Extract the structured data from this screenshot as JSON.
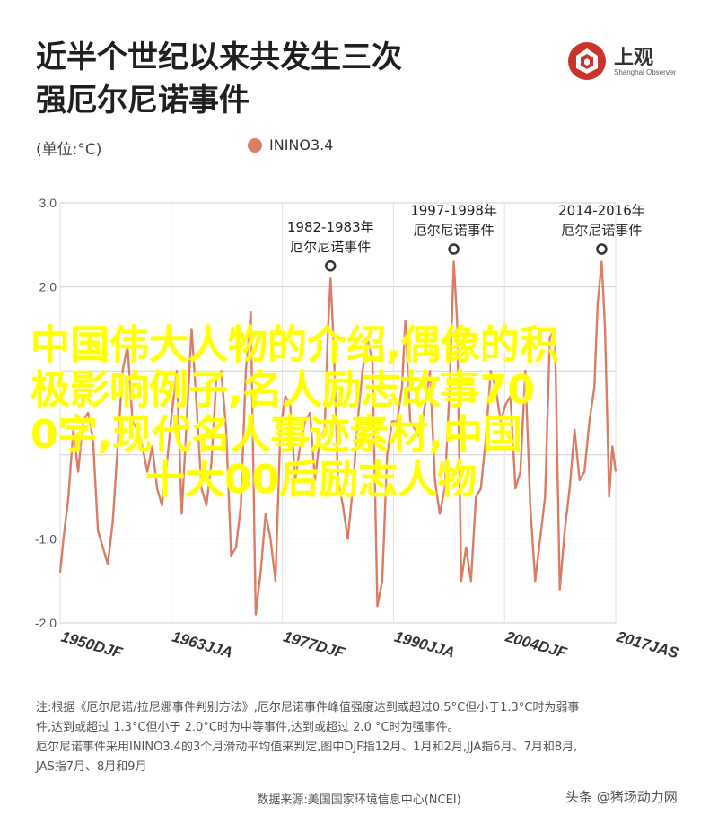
{
  "header": {
    "title_line1": "近半个世纪以来共发生三次",
    "title_line2": "强厄尔尼诺事件"
  },
  "brand": {
    "name": "上观",
    "subtitle": "Shanghai Observer",
    "logo_icon": "shanghai-observer-logo-icon"
  },
  "unit_label": "(单位:°C)",
  "legend": {
    "label": "ININO3.4"
  },
  "colors": {
    "series": "#d97d67",
    "overlay_text": "#ffff00"
  },
  "chart_data": {
    "type": "line",
    "title": "近半个世纪以来共发生三次强厄尔尼诺事件",
    "ylabel": "(单位:°C)",
    "ylim": [
      -2.0,
      3.0
    ],
    "yticks": [
      "3.0",
      "2.0",
      "-1.0",
      "-2.0"
    ],
    "xticks": [
      "1950DJF",
      "1963JJA",
      "1977DJF",
      "1990JJA",
      "2004DJF",
      "2017JAS"
    ],
    "x_range": [
      1950.0,
      2017.6
    ],
    "grid": true,
    "series": [
      {
        "name": "ININO3.4",
        "x": [
          1950.0,
          1950.4,
          1951.0,
          1951.6,
          1952.2,
          1952.8,
          1953.4,
          1954.0,
          1954.6,
          1955.2,
          1955.8,
          1956.4,
          1957.0,
          1957.6,
          1958.2,
          1958.8,
          1959.4,
          1960.0,
          1960.6,
          1961.2,
          1961.8,
          1962.4,
          1963.0,
          1963.6,
          1964.2,
          1964.8,
          1965.4,
          1966.0,
          1966.6,
          1967.2,
          1967.8,
          1968.4,
          1969.0,
          1969.6,
          1970.2,
          1970.8,
          1971.4,
          1972.0,
          1972.6,
          1973.2,
          1973.8,
          1974.4,
          1975.0,
          1975.6,
          1976.2,
          1976.8,
          1977.4,
          1978.0,
          1978.6,
          1979.2,
          1979.8,
          1980.4,
          1981.0,
          1981.6,
          1982.2,
          1982.6,
          1982.9,
          1983.3,
          1983.8,
          1984.4,
          1985.0,
          1985.6,
          1986.2,
          1986.8,
          1987.4,
          1988.0,
          1988.6,
          1989.2,
          1989.8,
          1990.4,
          1991.0,
          1991.6,
          1992.0,
          1992.6,
          1993.2,
          1993.8,
          1994.4,
          1995.0,
          1995.6,
          1996.2,
          1996.8,
          1997.4,
          1997.9,
          1998.3,
          1998.8,
          1999.4,
          2000.0,
          2000.6,
          2001.2,
          2001.8,
          2002.4,
          2003.0,
          2003.6,
          2004.2,
          2004.8,
          2005.4,
          2006.0,
          2006.6,
          2007.2,
          2007.8,
          2008.4,
          2009.0,
          2009.6,
          2010.2,
          2010.8,
          2011.4,
          2012.0,
          2012.6,
          2013.2,
          2013.8,
          2014.4,
          2015.0,
          2015.4,
          2015.9,
          2016.3,
          2016.8,
          2017.2,
          2017.6
        ],
        "values": [
          -1.4,
          -1.0,
          -0.5,
          0.3,
          -0.2,
          0.4,
          0.5,
          0.2,
          -0.9,
          -1.1,
          -1.3,
          -0.8,
          0.1,
          1.0,
          1.3,
          0.4,
          0.3,
          0.1,
          -0.2,
          0.1,
          -0.4,
          -0.6,
          -0.1,
          0.5,
          1.0,
          -0.7,
          0.4,
          1.5,
          0.6,
          -0.4,
          -0.6,
          -0.1,
          0.9,
          1.0,
          0.3,
          -1.2,
          -1.1,
          -0.6,
          1.0,
          1.7,
          -1.9,
          -1.4,
          -0.7,
          -1.0,
          -1.5,
          0.3,
          0.7,
          0.6,
          -0.3,
          0.1,
          0.4,
          0.5,
          -0.3,
          0.2,
          0.3,
          1.5,
          2.1,
          1.3,
          -0.3,
          -0.6,
          -1.0,
          -0.4,
          0.4,
          1.0,
          1.4,
          1.1,
          -1.8,
          -1.5,
          0.0,
          0.4,
          0.4,
          0.8,
          1.6,
          0.4,
          0.3,
          0.2,
          0.6,
          1.0,
          -0.3,
          -0.7,
          -0.4,
          0.8,
          2.3,
          1.6,
          -1.5,
          -1.1,
          -1.5,
          -0.5,
          -0.4,
          0.2,
          1.0,
          0.8,
          0.4,
          0.6,
          0.7,
          -0.4,
          -0.2,
          1.0,
          -0.6,
          -1.5,
          -1.0,
          -0.5,
          1.4,
          1.5,
          -1.6,
          -0.9,
          -0.4,
          0.3,
          -0.3,
          -0.2,
          0.4,
          0.8,
          1.8,
          2.3,
          1.5,
          -0.5,
          0.1,
          -0.2
        ]
      }
    ],
    "annotations": [
      {
        "x": 1982.9,
        "y": 2.1,
        "line1": "1982-1983年",
        "line2": "厄尔尼诺事件"
      },
      {
        "x": 1997.9,
        "y": 2.3,
        "line1": "1997-1998年",
        "line2": "厄尔尼诺事件"
      },
      {
        "x": 2015.9,
        "y": 2.3,
        "line1": "2014-2016年",
        "line2": "厄尔尼诺事件"
      }
    ]
  },
  "note": {
    "line1": "注:根据《厄尔尼诺/拉尼娜事件判别方法》,厄尔尼诺事件峰值强度达到或超过0.5°C但小于1.3°C时为弱事",
    "line2": "件,达到或超过 1.3°C但小于 2.0°C时为中等事件,达到或超过 2.0 °C时为强事件。",
    "line3": "厄尔尼诺事件采用ININO3.4的3个月滑动平均值来判定,图中DJF指12月、1月和2月,JJA指6月、7月和8月,",
    "line4": "JAS指7月、8月和9月"
  },
  "source": "数据来源:美国国家环境信息中心(NCEI)",
  "watermark": "头条 @猪场动力网",
  "overlay": {
    "line1": "中国伟大人物的介绍,偶像的积",
    "line2": "极影响例子,名人励志故事70",
    "line3": "0字,现代名人事迹素材,中国",
    "line4": "十大00后励志人物"
  }
}
